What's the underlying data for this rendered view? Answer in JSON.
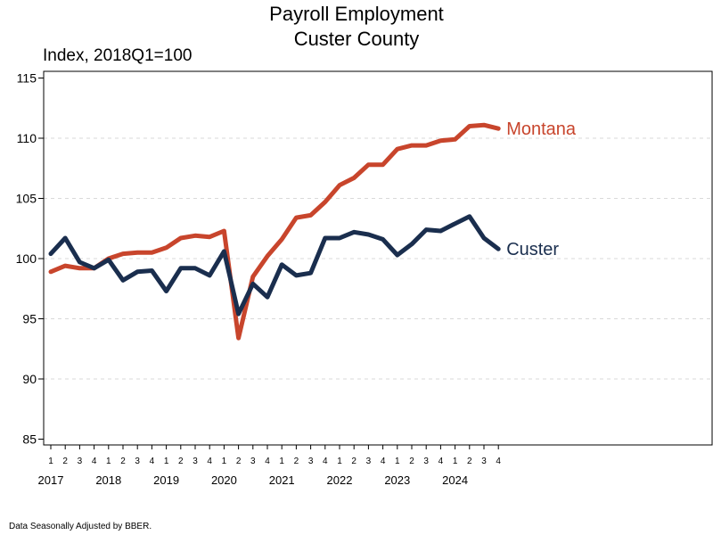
{
  "chart_data": {
    "type": "line",
    "title": [
      "Payroll Employment",
      "Custer County"
    ],
    "ylabel": "Index, 2018Q1=100",
    "ylim": [
      85,
      115
    ],
    "yticks": [
      85,
      90,
      95,
      100,
      105,
      110,
      115
    ],
    "grid": "horizontal-dashed",
    "quarter_labels": [
      "1",
      "2",
      "3",
      "4",
      "1",
      "2",
      "3",
      "4",
      "1",
      "2",
      "3",
      "4",
      "1",
      "2",
      "3",
      "4",
      "1",
      "2",
      "3",
      "4",
      "1",
      "2",
      "3",
      "4",
      "1",
      "2",
      "3",
      "4",
      "1",
      "2",
      "3",
      "4"
    ],
    "year_labels": [
      "2017",
      "2018",
      "2019",
      "2020",
      "2021",
      "2022",
      "2023",
      "2024"
    ],
    "legend": "end-of-line labels",
    "series": [
      {
        "name": "Montana",
        "color": "#c8452c",
        "values": [
          98.9,
          99.4,
          99.2,
          99.2,
          100.0,
          100.4,
          100.5,
          100.5,
          100.9,
          101.7,
          101.9,
          101.8,
          102.3,
          93.4,
          98.5,
          100.2,
          101.6,
          103.4,
          103.6,
          104.7,
          106.1,
          106.7,
          107.8,
          107.8,
          109.1,
          109.4,
          109.4,
          109.8,
          109.9,
          111.0,
          111.1,
          110.8
        ]
      },
      {
        "name": "Custer",
        "color": "#1a2e4e",
        "values": [
          100.4,
          101.7,
          99.7,
          99.2,
          99.9,
          98.2,
          98.9,
          99.0,
          97.3,
          99.2,
          99.2,
          98.6,
          100.6,
          95.4,
          97.9,
          96.8,
          99.5,
          98.6,
          98.8,
          101.7,
          101.7,
          102.2,
          102.0,
          101.6,
          100.3,
          101.2,
          102.4,
          102.3,
          102.9,
          103.5,
          101.7,
          100.8
        ]
      }
    ]
  },
  "footnote": "Data Seasonally Adjusted by BBER."
}
